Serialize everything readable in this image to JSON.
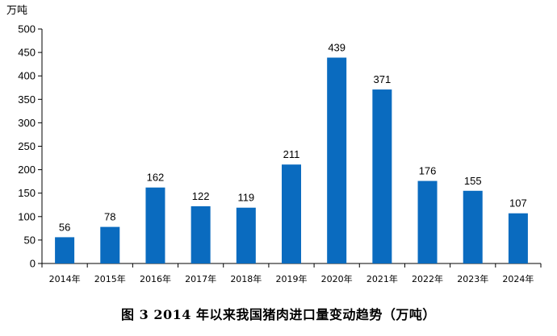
{
  "chart_data": {
    "type": "bar",
    "unit_label": "万吨",
    "caption": "图 3   2014 年以来我国猪肉进口量变动趋势（万吨）",
    "categories": [
      "2014年",
      "2015年",
      "2016年",
      "2017年",
      "2018年",
      "2019年",
      "2020年",
      "2021年",
      "2022年",
      "2023年",
      "2024年"
    ],
    "values": [
      56,
      78,
      162,
      122,
      119,
      211,
      439,
      371,
      176,
      155,
      107
    ],
    "ylim": [
      0,
      500
    ],
    "yticks": [
      0,
      50,
      100,
      150,
      200,
      250,
      300,
      350,
      400,
      450,
      500
    ],
    "grid": false,
    "legend": "none",
    "bar_color": "#0a6bbf"
  }
}
